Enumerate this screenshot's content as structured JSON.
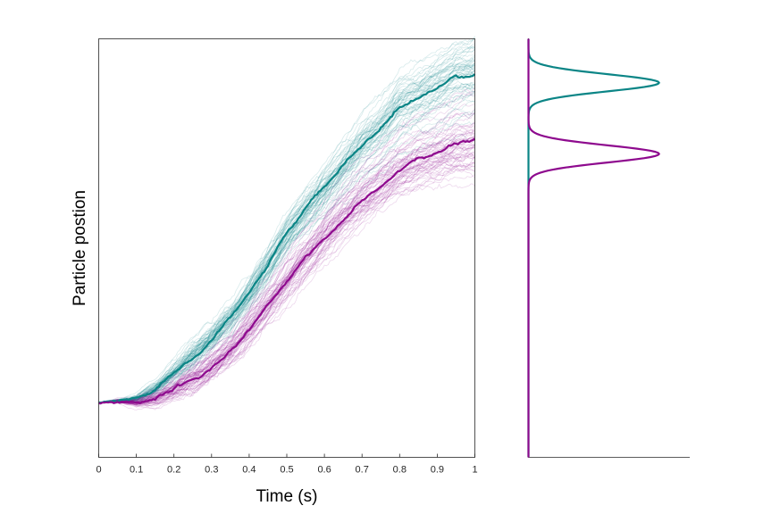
{
  "chart_data": [
    {
      "type": "line",
      "title": "",
      "xlabel": "Time (s)",
      "ylabel": "Particle postion",
      "xlim": [
        0,
        1
      ],
      "ylim": [
        0,
        1
      ],
      "x_ticks": [
        0,
        0.1,
        0.2,
        0.3,
        0.4,
        0.5,
        0.6,
        0.7,
        0.8,
        0.9,
        1
      ],
      "x_tick_labels": [
        "0",
        "0.1",
        "0.2",
        "0.3",
        "0.4",
        "0.5",
        "0.6",
        "0.7",
        "0.8",
        "0.9",
        "1"
      ],
      "y_ticks_shown": false,
      "grid": false,
      "legend": false,
      "background_trajectories_per_series": 60,
      "series": [
        {
          "color": "#0b8586",
          "x": [
            0,
            0.05,
            0.1,
            0.15,
            0.2,
            0.25,
            0.3,
            0.35,
            0.4,
            0.45,
            0.5,
            0.55,
            0.6,
            0.65,
            0.7,
            0.75,
            0.8,
            0.85,
            0.9,
            0.95,
            1
          ],
          "y": [
            0.13,
            0.135,
            0.14,
            0.165,
            0.205,
            0.245,
            0.285,
            0.33,
            0.39,
            0.46,
            0.53,
            0.59,
            0.64,
            0.695,
            0.745,
            0.785,
            0.835,
            0.855,
            0.88,
            0.905,
            0.915
          ]
        },
        {
          "color": "#8e0a8e",
          "x": [
            0,
            0.05,
            0.1,
            0.15,
            0.2,
            0.25,
            0.3,
            0.35,
            0.4,
            0.45,
            0.5,
            0.55,
            0.6,
            0.65,
            0.7,
            0.75,
            0.8,
            0.85,
            0.9,
            0.95,
            1
          ],
          "y": [
            0.13,
            0.135,
            0.13,
            0.14,
            0.16,
            0.185,
            0.215,
            0.255,
            0.305,
            0.365,
            0.42,
            0.475,
            0.525,
            0.575,
            0.615,
            0.65,
            0.685,
            0.71,
            0.725,
            0.745,
            0.755
          ]
        }
      ]
    },
    {
      "type": "area",
      "title": "",
      "xlabel": "",
      "ylabel": "",
      "shares_y_axis_with_left_plot": true,
      "distribution_axis_max": 1,
      "series": [
        {
          "color": "#0b8586",
          "peak_y": 0.895,
          "peak_density": 0.81,
          "spread": 0.0205
        },
        {
          "color": "#8e0a8e",
          "peak_y": 0.725,
          "peak_density": 0.81,
          "spread": 0.0205
        }
      ]
    }
  ]
}
